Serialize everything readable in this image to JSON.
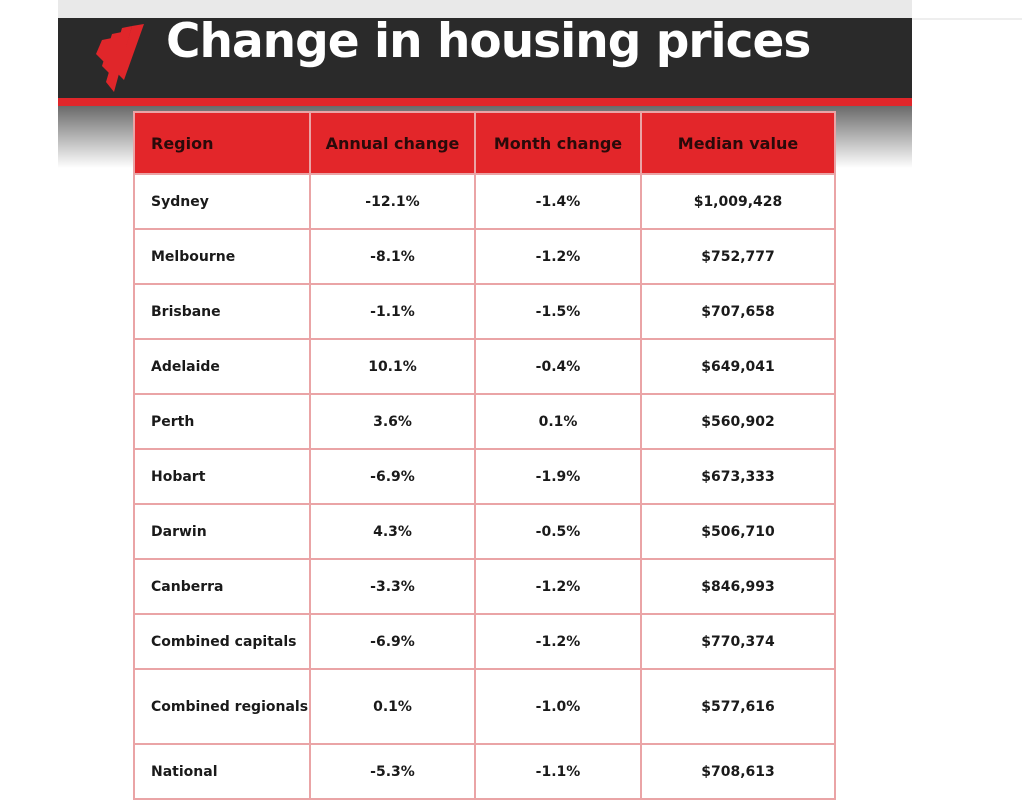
{
  "header": {
    "title": "Change in housing prices",
    "logo": "sbs-logo",
    "accent": "#e3262a"
  },
  "table": {
    "columns": [
      "Region",
      "Annual change",
      "Month change",
      "Median value"
    ],
    "rows": [
      [
        "Sydney",
        "-12.1%",
        "-1.4%",
        "$1,009,428"
      ],
      [
        "Melbourne",
        "-8.1%",
        "-1.2%",
        "$752,777"
      ],
      [
        "Brisbane",
        "-1.1%",
        "-1.5%",
        "$707,658"
      ],
      [
        "Adelaide",
        "10.1%",
        "-0.4%",
        "$649,041"
      ],
      [
        "Perth",
        "3.6%",
        "0.1%",
        "$560,902"
      ],
      [
        "Hobart",
        "-6.9%",
        "-1.9%",
        "$673,333"
      ],
      [
        "Darwin",
        "4.3%",
        "-0.5%",
        "$506,710"
      ],
      [
        "Canberra",
        "-3.3%",
        "-1.2%",
        "$846,993"
      ],
      [
        "Combined capitals",
        "-6.9%",
        "-1.2%",
        "$770,374"
      ],
      [
        "Combined regionals",
        "0.1%",
        "-1.0%",
        "$577,616"
      ],
      [
        "National",
        "-5.3%",
        "-1.1%",
        "$708,613"
      ]
    ]
  }
}
